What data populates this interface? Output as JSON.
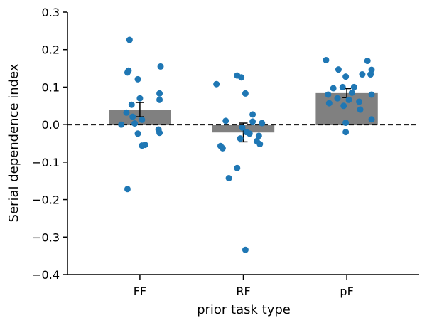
{
  "chart_data": {
    "type": "bar",
    "xlabel": "prior task type",
    "ylabel": "Serial dependence index",
    "ylim": [
      -0.4,
      0.3
    ],
    "yticks": [
      0.3,
      0.2,
      0.1,
      0.0,
      -0.1,
      -0.2,
      -0.3,
      -0.4
    ],
    "ytick_labels": [
      "0.3",
      "0.2",
      "0.1",
      "0.0",
      "−0.1",
      "−0.2",
      "−0.3",
      "−0.4"
    ],
    "categories": [
      "FF",
      "RF",
      "pF"
    ],
    "values": [
      0.04,
      -0.021,
      0.084
    ],
    "errors": [
      0.019,
      0.025,
      0.012
    ],
    "reference_line": 0.0,
    "colors": {
      "bar": "#808080",
      "points": "#1f77b4",
      "line": "#000000"
    },
    "points": [
      [
        [
          -0.1,
          0.226
        ],
        [
          -0.11,
          0.144
        ],
        [
          -0.12,
          0.139
        ],
        [
          -0.02,
          0.121
        ],
        [
          0.2,
          0.155
        ],
        [
          0.19,
          0.083
        ],
        [
          0.19,
          0.066
        ],
        [
          0.0,
          0.07
        ],
        [
          -0.08,
          0.053
        ],
        [
          -0.13,
          0.032
        ],
        [
          -0.07,
          0.021
        ],
        [
          0.02,
          0.013
        ],
        [
          -0.18,
          0.0
        ],
        [
          -0.05,
          0.003
        ],
        [
          0.18,
          -0.013
        ],
        [
          0.19,
          -0.022
        ],
        [
          -0.02,
          -0.024
        ],
        [
          0.05,
          -0.054
        ],
        [
          0.02,
          -0.056
        ],
        [
          -0.12,
          -0.172
        ]
      ],
      [
        [
          -0.26,
          0.108
        ],
        [
          -0.06,
          0.131
        ],
        [
          -0.02,
          0.126
        ],
        [
          0.02,
          0.083
        ],
        [
          0.09,
          0.027
        ],
        [
          -0.17,
          0.01
        ],
        [
          0.09,
          0.008
        ],
        [
          0.18,
          0.004
        ],
        [
          -0.01,
          -0.008
        ],
        [
          0.03,
          -0.02
        ],
        [
          0.06,
          -0.024
        ],
        [
          0.15,
          -0.03
        ],
        [
          -0.03,
          -0.037
        ],
        [
          0.13,
          -0.044
        ],
        [
          -0.22,
          -0.057
        ],
        [
          -0.2,
          -0.063
        ],
        [
          0.16,
          -0.052
        ],
        [
          -0.06,
          -0.116
        ],
        [
          -0.14,
          -0.143
        ],
        [
          0.02,
          -0.334
        ]
      ],
      [
        [
          -0.2,
          0.172
        ],
        [
          0.2,
          0.17
        ],
        [
          -0.08,
          0.147
        ],
        [
          0.24,
          0.146
        ],
        [
          0.15,
          0.134
        ],
        [
          0.23,
          0.134
        ],
        [
          -0.01,
          0.128
        ],
        [
          -0.13,
          0.097
        ],
        [
          -0.04,
          0.1
        ],
        [
          0.07,
          0.1
        ],
        [
          -0.18,
          0.08
        ],
        [
          0.05,
          0.085
        ],
        [
          0.24,
          0.08
        ],
        [
          -0.09,
          0.07
        ],
        [
          0.02,
          0.066
        ],
        [
          0.12,
          0.061
        ],
        [
          -0.17,
          0.057
        ],
        [
          -0.03,
          0.05
        ],
        [
          0.13,
          0.04
        ],
        [
          0.24,
          0.014
        ],
        [
          -0.01,
          0.005
        ],
        [
          -0.01,
          -0.02
        ]
      ]
    ]
  }
}
